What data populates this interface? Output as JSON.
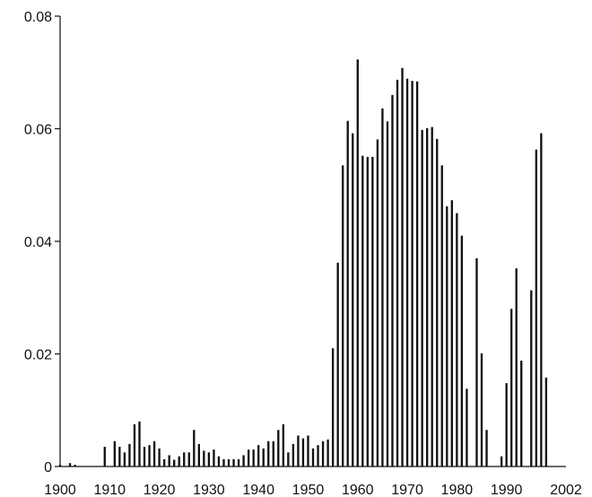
{
  "chart_data": {
    "type": "bar",
    "title": "",
    "xlabel": "",
    "ylabel": "",
    "xlim": [
      1900,
      2002
    ],
    "ylim": [
      0,
      0.08
    ],
    "grid": false,
    "bar_color": "#111111",
    "x_ticks": [
      "1900",
      "1910",
      "1920",
      "1930",
      "1940",
      "1950",
      "1960",
      "1970",
      "1980",
      "1990",
      "2002"
    ],
    "y_ticks": [
      "0",
      "0.02",
      "0.04",
      "0.06",
      "0.08"
    ],
    "x_tick_values": [
      1900,
      1910,
      1920,
      1930,
      1940,
      1950,
      1960,
      1970,
      1980,
      1990,
      2002
    ],
    "y_tick_values": [
      0,
      0.02,
      0.04,
      0.06,
      0.08
    ],
    "x": [
      1900,
      1901,
      1902,
      1903,
      1904,
      1905,
      1906,
      1907,
      1908,
      1909,
      1910,
      1911,
      1912,
      1913,
      1914,
      1915,
      1916,
      1917,
      1918,
      1919,
      1920,
      1921,
      1922,
      1923,
      1924,
      1925,
      1926,
      1927,
      1928,
      1929,
      1930,
      1931,
      1932,
      1933,
      1934,
      1935,
      1936,
      1937,
      1938,
      1939,
      1940,
      1941,
      1942,
      1943,
      1944,
      1945,
      1946,
      1947,
      1948,
      1949,
      1950,
      1951,
      1952,
      1953,
      1954,
      1955,
      1956,
      1957,
      1958,
      1959,
      1960,
      1961,
      1962,
      1963,
      1964,
      1965,
      1966,
      1967,
      1968,
      1969,
      1970,
      1971,
      1972,
      1973,
      1974,
      1975,
      1976,
      1977,
      1978,
      1979,
      1980,
      1981,
      1982,
      1983,
      1984,
      1985,
      1986,
      1987,
      1988,
      1989,
      1990,
      1991,
      1992,
      1993,
      1994,
      1995,
      1996,
      1997,
      1998,
      1999,
      2000,
      2001,
      2002
    ],
    "values": [
      0.0003,
      0,
      0.0006,
      0.0003,
      0,
      0,
      0,
      0,
      0,
      0.0035,
      0,
      0.0045,
      0.0035,
      0.0025,
      0.004,
      0.0075,
      0.008,
      0.0035,
      0.0038,
      0.0045,
      0.0032,
      0.0013,
      0.002,
      0.0012,
      0.0018,
      0.0025,
      0.0025,
      0.0065,
      0.004,
      0.0028,
      0.0025,
      0.003,
      0.0018,
      0.0013,
      0.0013,
      0.0013,
      0.0013,
      0.002,
      0.003,
      0.003,
      0.0038,
      0.0032,
      0.0045,
      0.0045,
      0.0065,
      0.0075,
      0.0025,
      0.004,
      0.0055,
      0.005,
      0.0055,
      0.0032,
      0.0038,
      0.0045,
      0.0048,
      0.021,
      0.0362,
      0.0535,
      0.0614,
      0.0592,
      0.0723,
      0.0552,
      0.055,
      0.055,
      0.0581,
      0.0636,
      0.0613,
      0.066,
      0.0687,
      0.0708,
      0.0689,
      0.0685,
      0.0684,
      0.0598,
      0.0601,
      0.0603,
      0.0582,
      0.0535,
      0.0462,
      0.0473,
      0.045,
      0.041,
      0.0138,
      0,
      0.037,
      0.0201,
      0.0065,
      0,
      0,
      0.0018,
      0.0148,
      0.028,
      0.0352,
      0.0188,
      0,
      0.0313,
      0.0563,
      0.0592,
      0.0158,
      0,
      0,
      0,
      0
    ]
  }
}
